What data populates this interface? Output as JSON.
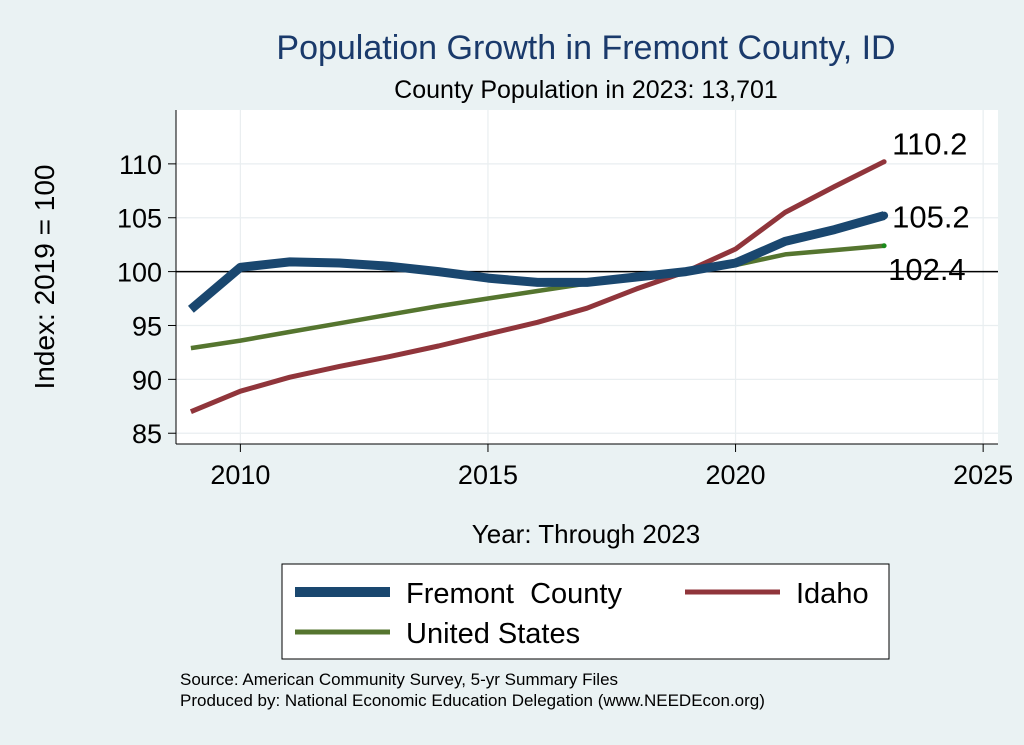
{
  "chart_data": {
    "type": "line",
    "title": "Population Growth in Fremont County, ID",
    "subtitle": "County Population in 2023: 13,701",
    "xlabel": "Year: Through 2023",
    "ylabel": "Index: 2019 = 100",
    "xlim": [
      2008.7,
      2025.3
    ],
    "ylim": [
      84,
      115
    ],
    "xticks": [
      2010,
      2015,
      2020,
      2025
    ],
    "yticks": [
      85,
      90,
      95,
      100,
      105,
      110
    ],
    "reference_line": 100,
    "grid": true,
    "legend_position": "bottom",
    "series": [
      {
        "name": "Fremont  County",
        "color": "#1a476f",
        "x": [
          2009,
          2010,
          2011,
          2012,
          2013,
          2014,
          2015,
          2016,
          2017,
          2018,
          2019,
          2020,
          2021,
          2022,
          2023
        ],
        "values": [
          96.5,
          100.4,
          100.9,
          100.8,
          100.5,
          100.0,
          99.4,
          99.0,
          99.0,
          99.5,
          100.0,
          100.8,
          102.8,
          103.9,
          105.2
        ],
        "end_label": "105.2"
      },
      {
        "name": "Idaho",
        "color": "#90353b",
        "x": [
          2009,
          2010,
          2011,
          2012,
          2013,
          2014,
          2015,
          2016,
          2017,
          2018,
          2019,
          2020,
          2021,
          2022,
          2023
        ],
        "values": [
          87.0,
          88.9,
          90.2,
          91.2,
          92.1,
          93.1,
          94.2,
          95.3,
          96.6,
          98.4,
          100.0,
          102.1,
          105.5,
          107.9,
          110.2
        ],
        "end_label": "110.2"
      },
      {
        "name": "United States",
        "color": "#55752f",
        "x": [
          2009,
          2010,
          2011,
          2012,
          2013,
          2014,
          2015,
          2016,
          2017,
          2018,
          2019,
          2020,
          2021,
          2022,
          2023
        ],
        "values": [
          92.9,
          93.6,
          94.4,
          95.2,
          96.0,
          96.8,
          97.5,
          98.2,
          98.9,
          99.5,
          100.0,
          100.6,
          101.6,
          102.0,
          102.4
        ],
        "end_label": "102.4"
      }
    ]
  },
  "footer": {
    "source": "Source: American Community Survey, 5-yr Summary Files",
    "produced_by": "Produced by: National Economic Education Delegation (www.NEEDEcon.org)"
  }
}
